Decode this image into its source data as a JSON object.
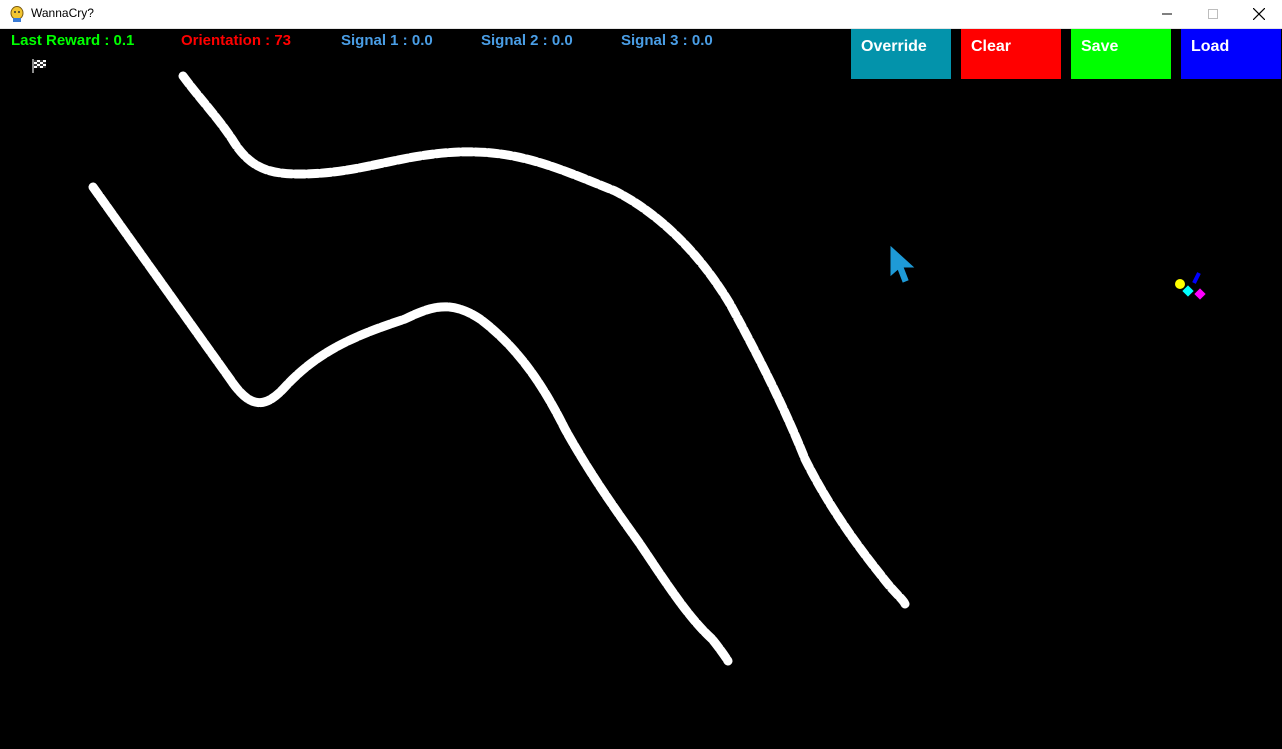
{
  "window": {
    "title": "WannaCry?",
    "controls": [
      "minimize-icon",
      "maximize-icon",
      "close-icon"
    ]
  },
  "hud": {
    "last_reward": "Last Reward : 0.1",
    "orientation": "Orientation : 73",
    "signal1": "Signal 1 : 0.0",
    "signal2": "Signal 2 : 0.0",
    "signal3": "Signal 3 : 0.0"
  },
  "buttons": {
    "override": "Override",
    "clear": "Clear",
    "save": "Save",
    "load": "Load"
  },
  "colors": {
    "last_reward": "#00ff00",
    "orientation": "#ff0000",
    "signal": "#4a9ee6",
    "override_bg": "#0393ab",
    "clear_bg": "#ff0000",
    "save_bg": "#00ff00",
    "load_bg": "#0000ff",
    "road": "#ffffff",
    "background": "#000000"
  },
  "icons": {
    "goal": "checkered-flag-icon",
    "cursor": "mouse-cursor-icon",
    "car": "car-sensors-icon"
  }
}
